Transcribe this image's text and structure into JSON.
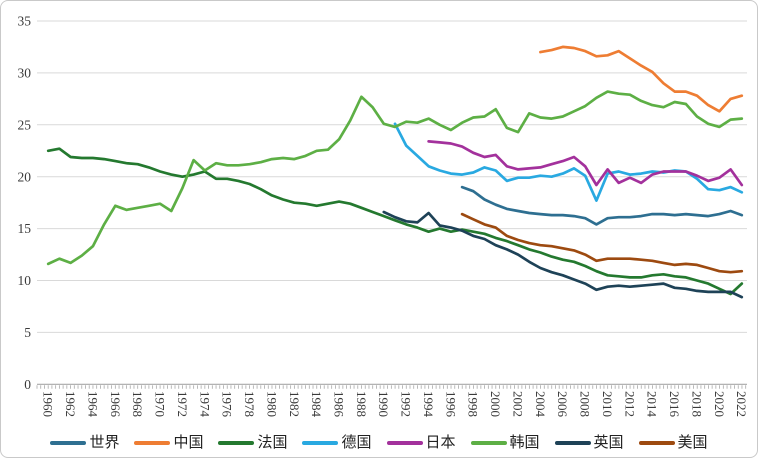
{
  "style": {
    "background": "#FFFFFF",
    "frame_border": "#C9C9C9",
    "grid_color": "#D9D9D9",
    "axis_color": "#A8A8A8",
    "label_color": "#3A3A3A"
  },
  "chart_data": {
    "type": "line",
    "title": "",
    "grid": true,
    "legend_position": "bottom",
    "y_axis": {
      "min": 0,
      "max": 35,
      "step": 5,
      "tick_labels": [
        "0",
        "5",
        "10",
        "15",
        "20",
        "25",
        "30",
        "35"
      ]
    },
    "x_axis": {
      "min_year": 1960,
      "max_year": 2022,
      "label_step": 2,
      "labels": [
        "1960",
        "1962",
        "1964",
        "1966",
        "1968",
        "1970",
        "1972",
        "1974",
        "1976",
        "1978",
        "1980",
        "1982",
        "1984",
        "1986",
        "1988",
        "1990",
        "1992",
        "1994",
        "1996",
        "1998",
        "2000",
        "2002",
        "2004",
        "2006",
        "2008",
        "2010",
        "2012",
        "2014",
        "2016",
        "2018",
        "2020",
        "2022"
      ]
    },
    "series": [
      {
        "name": "世界",
        "name_en": "world",
        "color": "#2E6F91",
        "start_year": 1997,
        "values": [
          19.0,
          18.6,
          17.8,
          17.3,
          16.9,
          16.7,
          16.5,
          16.4,
          16.3,
          16.3,
          16.2,
          16.0,
          15.4,
          16.0,
          16.1,
          16.1,
          16.2,
          16.4,
          16.4,
          16.3,
          16.4,
          16.3,
          16.2,
          16.4,
          16.7,
          16.3
        ]
      },
      {
        "name": "中国",
        "name_en": "china",
        "color": "#EE7D33",
        "start_year": 2004,
        "values": [
          32.0,
          32.2,
          32.5,
          32.4,
          32.1,
          31.6,
          31.7,
          32.1,
          31.4,
          30.7,
          30.1,
          29.0,
          28.2,
          28.2,
          27.8,
          26.9,
          26.3,
          27.5,
          27.8
        ]
      },
      {
        "name": "法国",
        "name_en": "france",
        "color": "#24792F",
        "start_year": 1960,
        "values": [
          22.5,
          22.7,
          21.9,
          21.8,
          21.8,
          21.7,
          21.5,
          21.3,
          21.2,
          20.9,
          20.5,
          20.2,
          20.0,
          20.2,
          20.5,
          19.8,
          19.8,
          19.6,
          19.3,
          18.8,
          18.2,
          17.8,
          17.5,
          17.4,
          17.2,
          17.4,
          17.6,
          17.4,
          17.0,
          16.6,
          16.2,
          15.8,
          15.4,
          15.1,
          14.7,
          15.0,
          14.7,
          14.9,
          14.7,
          14.5,
          14.1,
          13.8,
          13.4,
          13.0,
          12.7,
          12.3,
          12.0,
          11.8,
          11.4,
          10.9,
          10.5,
          10.4,
          10.3,
          10.3,
          10.5,
          10.6,
          10.4,
          10.3,
          10.0,
          9.7,
          9.2,
          8.7,
          9.7
        ]
      },
      {
        "name": "德国",
        "name_en": "germany",
        "color": "#29A9E1",
        "start_year": 1991,
        "values": [
          25.1,
          23.0,
          22.0,
          21.0,
          20.6,
          20.3,
          20.2,
          20.4,
          20.9,
          20.6,
          19.6,
          19.9,
          19.9,
          20.1,
          20.0,
          20.3,
          20.8,
          20.1,
          17.7,
          20.3,
          20.5,
          20.2,
          20.3,
          20.5,
          20.4,
          20.6,
          20.5,
          19.8,
          18.8,
          18.7,
          19.0,
          18.5
        ]
      },
      {
        "name": "日本",
        "name_en": "japan",
        "color": "#A3319C",
        "start_year": 1994,
        "values": [
          23.4,
          23.3,
          23.2,
          22.9,
          22.3,
          21.9,
          22.1,
          21.0,
          20.7,
          20.8,
          20.9,
          21.2,
          21.5,
          21.9,
          21.0,
          19.2,
          20.7,
          19.4,
          19.9,
          19.4,
          20.2,
          20.5,
          20.5,
          20.5,
          20.1,
          19.6,
          19.9,
          20.7,
          19.2
        ]
      },
      {
        "name": "韩国",
        "name_en": "korea",
        "color": "#5DAF45",
        "start_year": 1960,
        "values": [
          11.6,
          12.1,
          11.7,
          12.4,
          13.3,
          15.4,
          17.2,
          16.8,
          17.0,
          17.2,
          17.4,
          16.7,
          18.9,
          21.6,
          20.6,
          21.3,
          21.1,
          21.1,
          21.2,
          21.4,
          21.7,
          21.8,
          21.7,
          22.0,
          22.5,
          22.6,
          23.6,
          25.4,
          27.7,
          26.7,
          25.1,
          24.8,
          25.3,
          25.2,
          25.6,
          25.0,
          24.5,
          25.2,
          25.7,
          25.8,
          26.5,
          24.7,
          24.3,
          26.1,
          25.7,
          25.6,
          25.8,
          26.3,
          26.8,
          27.6,
          28.2,
          28.0,
          27.9,
          27.3,
          26.9,
          26.7,
          27.2,
          27.0,
          25.8,
          25.1,
          24.8,
          25.5,
          25.6
        ]
      },
      {
        "name": "英国",
        "name_en": "uk",
        "color": "#1E4257",
        "start_year": 1990,
        "values": [
          16.6,
          16.1,
          15.7,
          15.6,
          16.5,
          15.3,
          15.1,
          14.8,
          14.3,
          14.0,
          13.4,
          13.0,
          12.5,
          11.8,
          11.2,
          10.8,
          10.5,
          10.1,
          9.7,
          9.1,
          9.4,
          9.5,
          9.4,
          9.5,
          9.6,
          9.7,
          9.3,
          9.2,
          9.0,
          8.9,
          8.9,
          8.9,
          8.4
        ]
      },
      {
        "name": "美国",
        "name_en": "usa",
        "color": "#9D4A10",
        "start_year": 1997,
        "values": [
          16.4,
          15.9,
          15.4,
          15.1,
          14.3,
          13.9,
          13.6,
          13.4,
          13.3,
          13.1,
          12.9,
          12.5,
          11.9,
          12.1,
          12.1,
          12.1,
          12.0,
          11.9,
          11.7,
          11.5,
          11.6,
          11.5,
          11.2,
          10.9,
          10.8,
          10.9
        ]
      }
    ]
  }
}
